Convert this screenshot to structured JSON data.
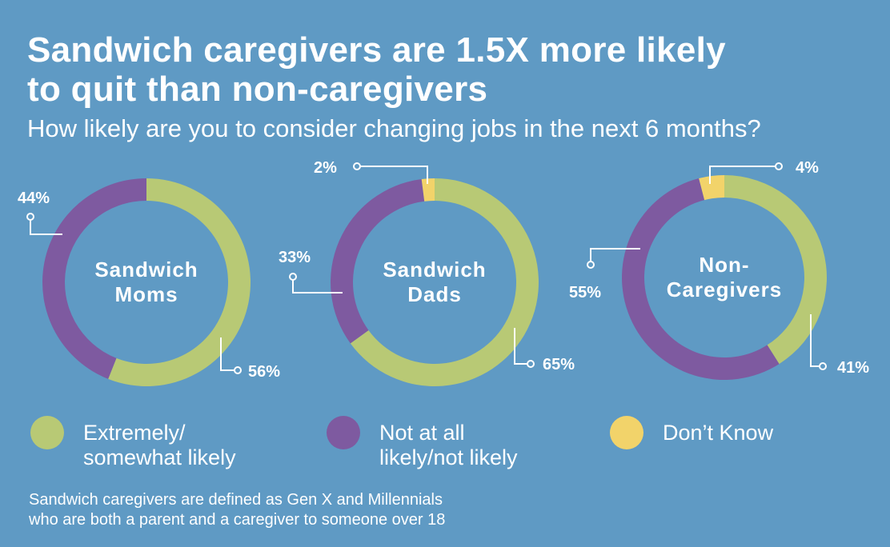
{
  "header": {
    "title_line1": "Sandwich caregivers are 1.5X more likely",
    "title_line2": "to quit than non-caregivers",
    "subtitle": "How likely are you to consider changing jobs in the next 6 months?"
  },
  "colors": {
    "background": "#5f9ac4",
    "likely": "#b8c975",
    "not_likely": "#7e5aa0",
    "dont_know": "#f2d36a",
    "text": "#ffffff"
  },
  "chart_data": {
    "type": "pie",
    "title": "How likely are you to consider changing jobs in the next 6 months?",
    "categories": [
      "Extremely/ somewhat likely",
      "Not at all likely/not likely",
      "Don't Know"
    ],
    "series": [
      {
        "name": "Sandwich Moms",
        "values": [
          56,
          44,
          0
        ]
      },
      {
        "name": "Sandwich Dads",
        "values": [
          65,
          33,
          2
        ]
      },
      {
        "name": "Non-Caregivers",
        "values": [
          41,
          55,
          4
        ]
      }
    ]
  },
  "donuts": [
    {
      "center_lines": [
        "Sandwich",
        "Moms"
      ],
      "labels": {
        "likely": "56%",
        "not_likely": "44%"
      }
    },
    {
      "center_lines": [
        "Sandwich",
        "Dads"
      ],
      "labels": {
        "likely": "65%",
        "not_likely": "33%",
        "dont_know": "2%"
      }
    },
    {
      "center_lines": [
        "Non-",
        "Caregivers"
      ],
      "labels": {
        "likely": "41%",
        "not_likely": "55%",
        "dont_know": "4%"
      }
    }
  ],
  "legend": {
    "likely_line1": "Extremely/",
    "likely_line2": "somewhat likely",
    "not_likely_line1": "Not at all",
    "not_likely_line2": "likely/not likely",
    "dont_know": "Don’t Know"
  },
  "footnote": {
    "line1": "Sandwich caregivers are defined as Gen X and Millennials",
    "line2": "who are both a parent and a caregiver to someone over 18"
  }
}
